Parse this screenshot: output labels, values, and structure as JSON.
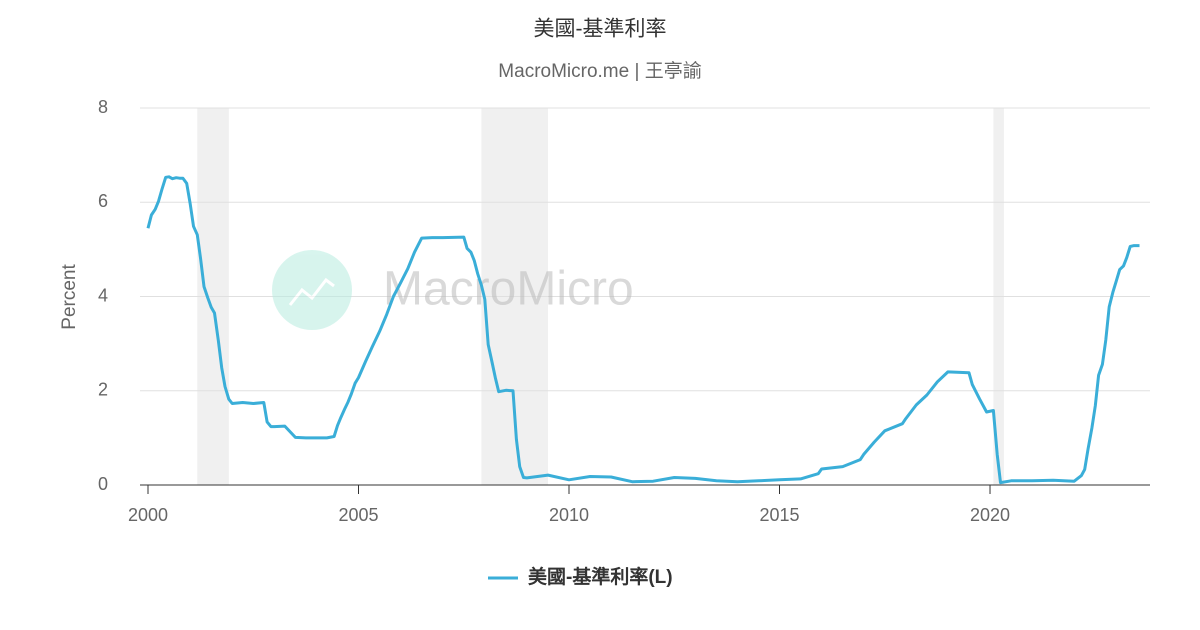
{
  "chart_data": {
    "type": "line",
    "title": "美國-基準利率",
    "subtitle": "MacroMicro.me | 王亭諭",
    "watermark": "MacroMicro",
    "ylabel": "Percent",
    "xlim": [
      1999.81,
      2023.8
    ],
    "ylim": [
      0,
      8
    ],
    "xticks": [
      2000,
      2005,
      2010,
      2015,
      2020
    ],
    "yticks": [
      0,
      2,
      4,
      6,
      8
    ],
    "grid": true,
    "legend": "bottom",
    "recessions": [
      [
        2001.17,
        2001.92
      ],
      [
        2007.92,
        2009.5
      ],
      [
        2020.08,
        2020.33
      ]
    ],
    "recession_color": "#f0f0f0",
    "x": [
      2000.0,
      2000.08,
      2000.17,
      2000.25,
      2000.33,
      2000.42,
      2000.5,
      2000.58,
      2000.67,
      2000.75,
      2000.83,
      2000.92,
      2001.0,
      2001.08,
      2001.17,
      2001.25,
      2001.33,
      2001.42,
      2001.5,
      2001.58,
      2001.67,
      2001.75,
      2001.83,
      2001.92,
      2002.0,
      2002.25,
      2002.5,
      2002.75,
      2002.83,
      2002.92,
      2003.0,
      2003.25,
      2003.5,
      2003.75,
      2004.0,
      2004.25,
      2004.42,
      2004.5,
      2004.58,
      2004.67,
      2004.75,
      2004.83,
      2004.92,
      2005.0,
      2005.17,
      2005.33,
      2005.5,
      2005.67,
      2005.83,
      2006.0,
      2006.17,
      2006.33,
      2006.5,
      2006.75,
      2007.0,
      2007.5,
      2007.58,
      2007.67,
      2007.75,
      2007.83,
      2007.92,
      2008.0,
      2008.08,
      2008.17,
      2008.25,
      2008.33,
      2008.5,
      2008.67,
      2008.75,
      2008.83,
      2008.92,
      2009.0,
      2009.5,
      2010.0,
      2010.5,
      2011.0,
      2011.5,
      2012.0,
      2012.5,
      2013.0,
      2013.5,
      2014.0,
      2014.5,
      2015.0,
      2015.5,
      2015.92,
      2016.0,
      2016.5,
      2016.92,
      2017.0,
      2017.25,
      2017.5,
      2017.92,
      2018.0,
      2018.25,
      2018.5,
      2018.75,
      2019.0,
      2019.5,
      2019.58,
      2019.75,
      2019.92,
      2020.08,
      2020.17,
      2020.25,
      2020.5,
      2021.0,
      2021.5,
      2022.0,
      2022.17,
      2022.25,
      2022.33,
      2022.42,
      2022.5,
      2022.58,
      2022.67,
      2022.75,
      2022.83,
      2022.92,
      2023.0,
      2023.08,
      2023.17,
      2023.25,
      2023.33,
      2023.42,
      2023.55
    ],
    "series": [
      {
        "name": "美國-基準利率(L)",
        "color": "#3aaed8",
        "values": [
          5.45,
          5.73,
          5.85,
          6.02,
          6.27,
          6.53,
          6.54,
          6.5,
          6.52,
          6.51,
          6.51,
          6.4,
          5.98,
          5.49,
          5.31,
          4.8,
          4.21,
          3.97,
          3.77,
          3.65,
          3.07,
          2.49,
          2.09,
          1.82,
          1.73,
          1.75,
          1.73,
          1.75,
          1.34,
          1.24,
          1.24,
          1.25,
          1.01,
          1.0,
          1.0,
          1.0,
          1.03,
          1.26,
          1.43,
          1.61,
          1.76,
          1.93,
          2.16,
          2.28,
          2.63,
          2.94,
          3.26,
          3.62,
          4.0,
          4.29,
          4.59,
          4.94,
          5.24,
          5.25,
          5.25,
          5.26,
          5.02,
          4.94,
          4.76,
          4.49,
          4.24,
          3.94,
          2.98,
          2.61,
          2.28,
          1.98,
          2.01,
          2.0,
          0.97,
          0.39,
          0.16,
          0.15,
          0.21,
          0.11,
          0.18,
          0.17,
          0.07,
          0.08,
          0.16,
          0.14,
          0.09,
          0.07,
          0.09,
          0.11,
          0.13,
          0.24,
          0.34,
          0.39,
          0.54,
          0.65,
          0.91,
          1.15,
          1.3,
          1.41,
          1.7,
          1.91,
          2.19,
          2.4,
          2.38,
          2.13,
          1.83,
          1.55,
          1.58,
          0.65,
          0.05,
          0.09,
          0.09,
          0.1,
          0.08,
          0.2,
          0.33,
          0.77,
          1.21,
          1.68,
          2.33,
          2.56,
          3.08,
          3.78,
          4.1,
          4.33,
          4.57,
          4.65,
          4.83,
          5.06,
          5.08,
          5.08
        ]
      }
    ]
  }
}
